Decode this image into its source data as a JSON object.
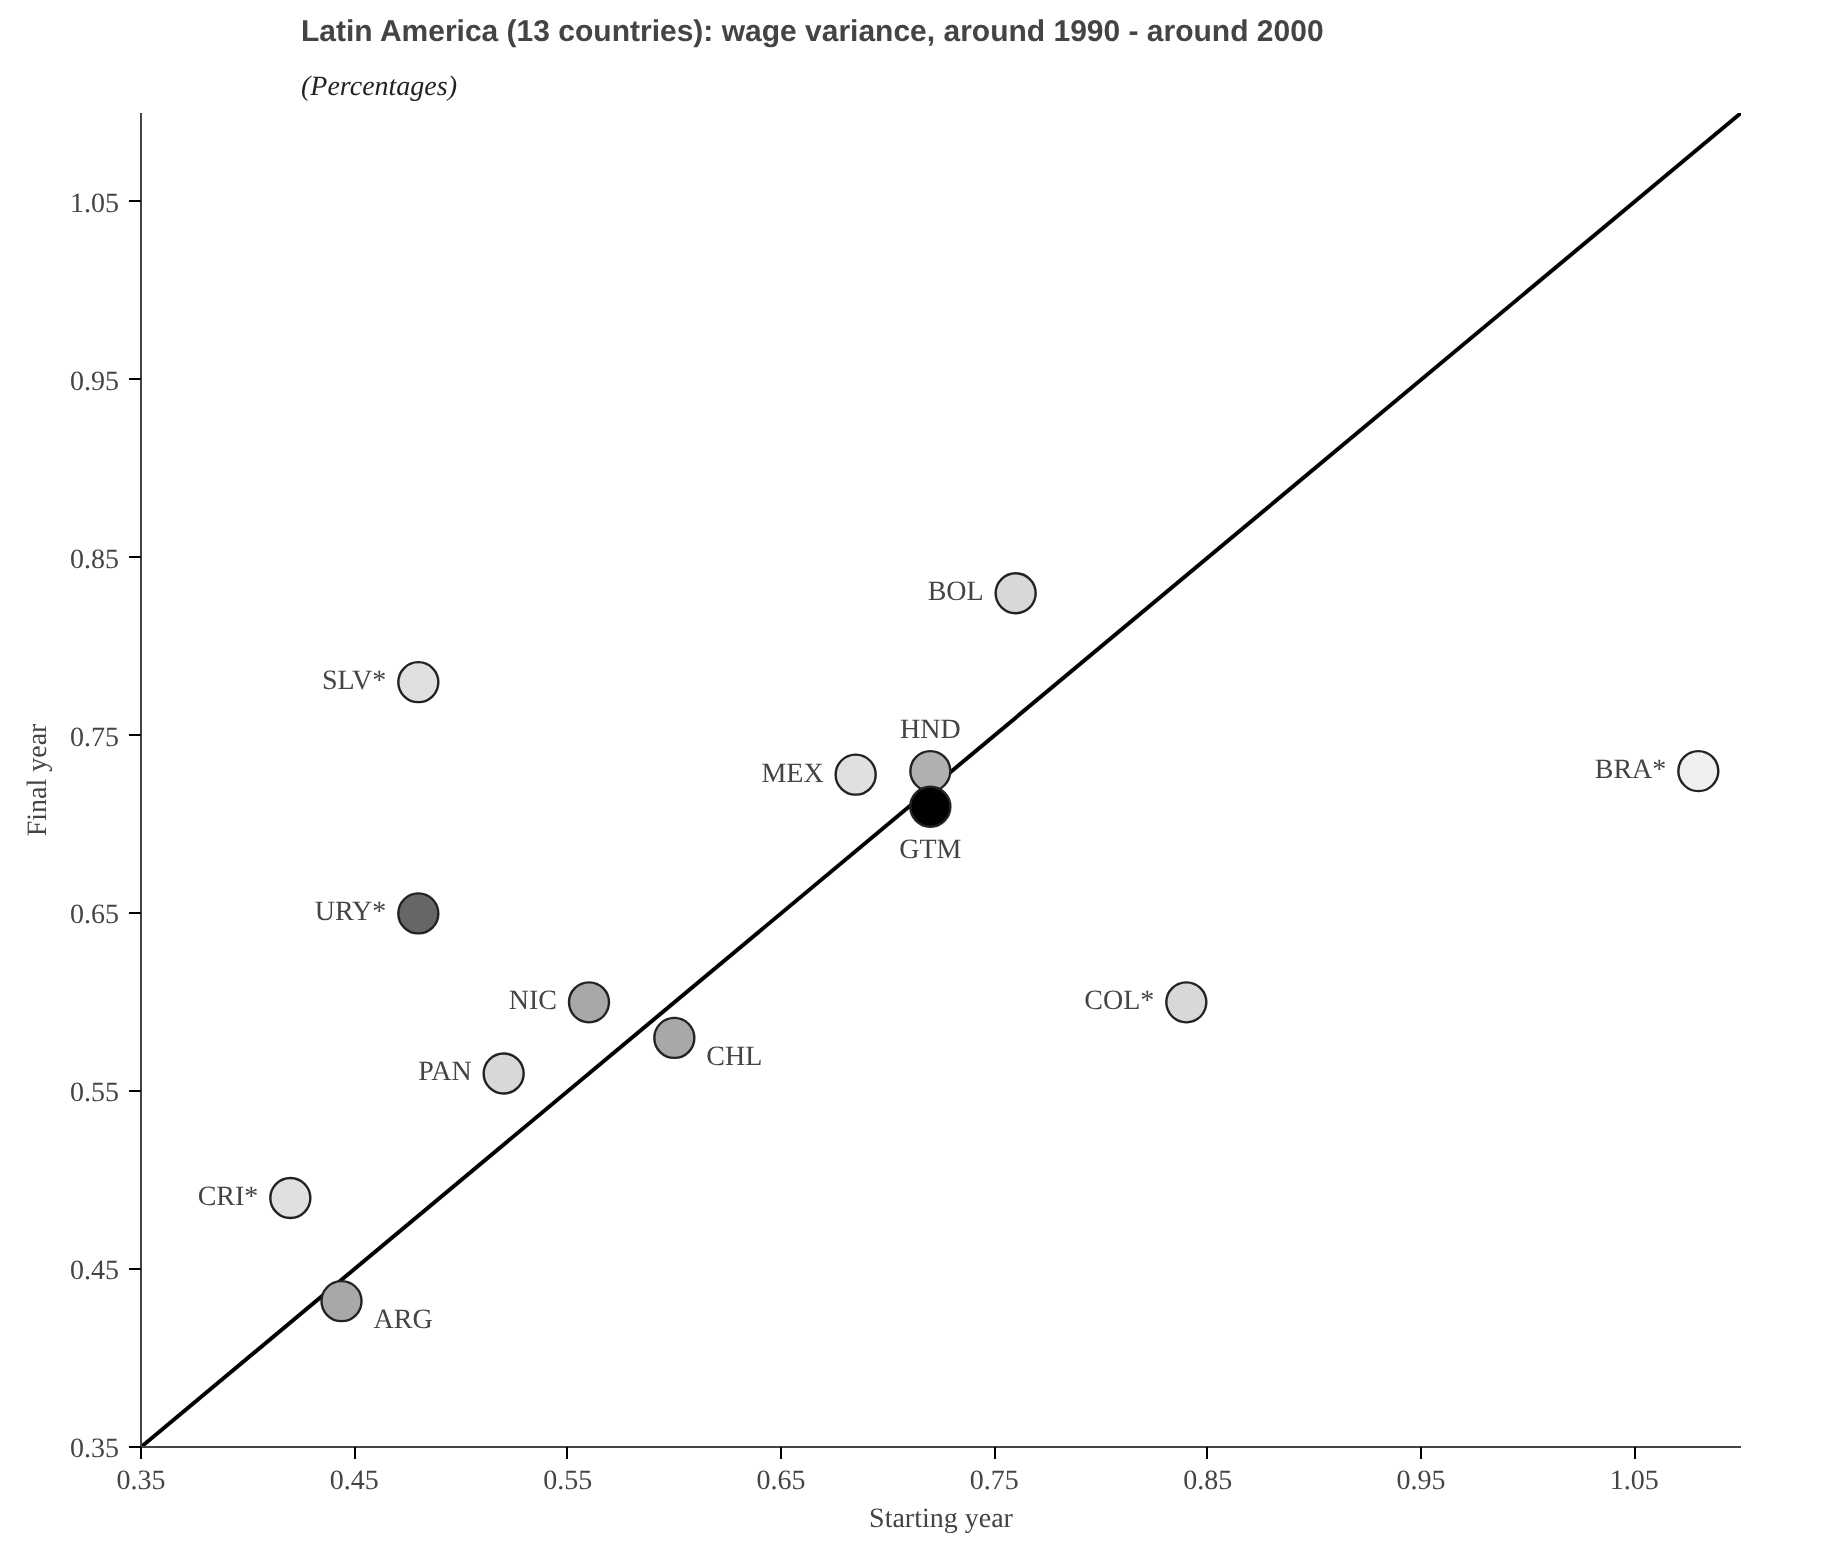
{
  "chart_data": {
    "type": "scatter",
    "title": "Latin America (13 countries): wage variance, around 1990 - around 2000",
    "subtitle": "(Percentages)",
    "xlabel": "Starting year",
    "ylabel": "Final year",
    "xlim": [
      0.35,
      1.1
    ],
    "ylim": [
      0.35,
      1.1
    ],
    "xticks": [
      0.35,
      0.45,
      0.55,
      0.65,
      0.75,
      0.85,
      0.95,
      1.05
    ],
    "yticks": [
      0.35,
      0.45,
      0.55,
      0.65,
      0.75,
      0.85,
      0.95,
      1.05
    ],
    "grid": false,
    "series": [
      {
        "type": "line",
        "color": "#000000",
        "marker": "none",
        "x": [
          0.35,
          1.1
        ],
        "values": [
          0.35,
          1.1
        ]
      },
      {
        "marker": "circle",
        "x": [
          0.48,
          0.48,
          0.56,
          0.52,
          0.6,
          0.42,
          0.444,
          0.685,
          0.76,
          0.72,
          0.72,
          0.84,
          1.08
        ],
        "values": [
          0.78,
          0.65,
          0.6,
          0.56,
          0.58,
          0.49,
          0.432,
          0.728,
          0.83,
          0.73,
          0.71,
          0.6,
          0.73
        ],
        "colors": [
          "#e0e0e0",
          "#666666",
          "#a8a8a8",
          "#d8d8d8",
          "#a8a8a8",
          "#e0e0e0",
          "#a8a8a8",
          "#e0e0e0",
          "#d8d8d8",
          "#b0b0b0",
          "#000000",
          "#d8d8d8",
          "#f0f0f0"
        ],
        "value_labels": [
          "SLV*",
          "URY*",
          "NIC",
          "PAN",
          "CHL",
          "CRI*",
          "ARG",
          "MEX",
          "BOL",
          "HND",
          "GTM",
          "COL*",
          "BRA*"
        ]
      }
    ]
  }
}
